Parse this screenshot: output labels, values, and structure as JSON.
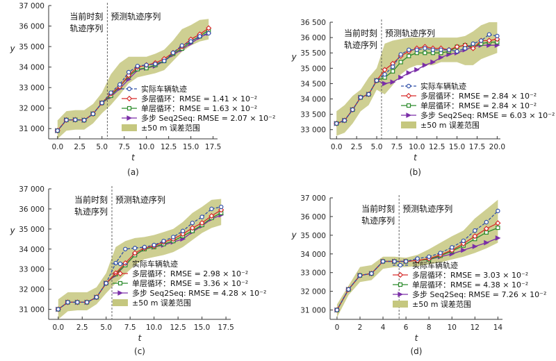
{
  "chart_data": [
    {
      "type": "line",
      "subplot_label": "(a)",
      "xlabel": "t",
      "ylabel": "y",
      "xlim": [
        -1,
        18
      ],
      "ylim": [
        30500,
        37000
      ],
      "xticks": [
        0,
        2.5,
        5,
        7.5,
        10,
        12.5,
        15,
        17.5
      ],
      "xtick_labels": [
        "0.0",
        "2.5",
        "5.0",
        "7.5",
        "10.0",
        "12.5",
        "15.0",
        "17.5"
      ],
      "yticks": [
        31000,
        32000,
        33000,
        34000,
        35000,
        36000,
        37000
      ],
      "ytick_labels": [
        "31 000",
        "32 000",
        "33 000",
        "34 000",
        "35 000",
        "36 000",
        "37 000"
      ],
      "divider_x": 5.6,
      "annotation_left": [
        "当前时刻",
        "轨迹序列"
      ],
      "annotation_right": "预测轨迹序列",
      "legend_position": "lower-right",
      "x": [
        0,
        1,
        2,
        3,
        4,
        5,
        6,
        7,
        8,
        9,
        10,
        11,
        12,
        13,
        14,
        15,
        16,
        17
      ],
      "band": {
        "name": "±50 m  误差范围",
        "lower": [
          30500,
          30900,
          30950,
          30950,
          31250,
          31750,
          32150,
          32650,
          33200,
          33500,
          33600,
          33700,
          33850,
          34300,
          34750,
          35050,
          35250,
          35350
        ],
        "upper": [
          31400,
          31850,
          31900,
          31900,
          32200,
          32750,
          33650,
          34200,
          34500,
          34500,
          34500,
          34650,
          34850,
          35300,
          35850,
          36050,
          36300,
          36350
        ]
      },
      "series": [
        {
          "name": "实际车辆轨迹",
          "values": [
            30900,
            31420,
            31430,
            31410,
            31720,
            32250,
            32750,
            33150,
            33750,
            34050,
            34100,
            34150,
            34300,
            34700,
            35050,
            35250,
            35500,
            35650
          ]
        },
        {
          "name": "多层循环：RMSE = 1.41 × 10⁻²",
          "values": [
            30900,
            31420,
            31430,
            31410,
            31720,
            32250,
            32700,
            33050,
            33600,
            34000,
            34100,
            34200,
            34400,
            34700,
            35000,
            35350,
            35600,
            35900
          ]
        },
        {
          "name": "单层循环：RMSE = 1.63 × 10⁻²",
          "values": [
            30900,
            31420,
            31430,
            31410,
            31720,
            32250,
            32600,
            33050,
            33550,
            33900,
            33950,
            34100,
            34300,
            34650,
            34900,
            35250,
            35500,
            35800
          ]
        },
        {
          "name": "多步 Seq2Seq: RMSE = 2.07 × 10⁻²",
          "values": [
            30900,
            31420,
            31430,
            31410,
            31720,
            32250,
            32550,
            32950,
            33400,
            33850,
            33950,
            34050,
            34300,
            34600,
            34850,
            35150,
            35450,
            35650
          ]
        }
      ]
    },
    {
      "type": "line",
      "subplot_label": "(b)",
      "xlabel": "t",
      "ylabel": "y",
      "xlim": [
        -0.8,
        20.4
      ],
      "ylim": [
        32700,
        36500
      ],
      "xticks": [
        0,
        2.5,
        5,
        7.5,
        10,
        12.5,
        15,
        17.5,
        20
      ],
      "xtick_labels": [
        "0.0",
        "2.5",
        "5.0",
        "7.5",
        "10.0",
        "12.5",
        "15.0",
        "17.5",
        "20.0"
      ],
      "yticks": [
        33000,
        33500,
        34000,
        34500,
        35000,
        35500,
        36000,
        36500
      ],
      "ytick_labels": [
        "33 000",
        "33 500",
        "34 000",
        "34 500",
        "35 000",
        "35 500",
        "36 000",
        "36 500"
      ],
      "divider_x": 5.6,
      "annotation_left": [
        "当前时刻",
        "轨迹序列"
      ],
      "annotation_right": "预测轨迹序列",
      "legend_position": "lower-right",
      "x": [
        0,
        1,
        2,
        3,
        4,
        5,
        6,
        7,
        8,
        9,
        10,
        11,
        12,
        13,
        14,
        15,
        16,
        17,
        18,
        19,
        20
      ],
      "band": {
        "name": "±50 m  误差范围",
        "lower": [
          32800,
          32900,
          33200,
          33600,
          33800,
          34300,
          34150,
          34450,
          34800,
          35000,
          35100,
          35100,
          35100,
          35200,
          35200,
          35200,
          35100,
          35100,
          35300,
          35400,
          35500
        ],
        "upper": [
          33600,
          33800,
          34100,
          34300,
          34700,
          35000,
          35800,
          35900,
          35950,
          36000,
          36000,
          36000,
          36000,
          36000,
          36000,
          36000,
          36050,
          36200,
          36400,
          36500,
          36500
        ]
      },
      "series": [
        {
          "name": "实际车辆轨迹",
          "values": [
            33200,
            33300,
            33650,
            34050,
            34150,
            34600,
            34800,
            35050,
            35450,
            35600,
            35600,
            35650,
            35600,
            35600,
            35600,
            35550,
            35650,
            35800,
            35900,
            36100,
            36050
          ]
        },
        {
          "name": "多层循环：RMSE = 2.84 × 10⁻²",
          "values": [
            33200,
            33300,
            33650,
            34050,
            34150,
            34600,
            34950,
            35150,
            35400,
            35550,
            35650,
            35700,
            35650,
            35650,
            35600,
            35700,
            35750,
            35650,
            35900,
            35900,
            35950
          ]
        },
        {
          "name": "单层循环：RMSE = 2.84 × 10⁻²",
          "values": [
            33200,
            33300,
            33650,
            34050,
            34150,
            34600,
            34700,
            34900,
            35200,
            35400,
            35500,
            35500,
            35500,
            35500,
            35550,
            35700,
            35750,
            35700,
            35800,
            35850,
            35850
          ]
        },
        {
          "name": "多步 Seq2Seq: RMSE = 6.03 × 10⁻²",
          "values": [
            33200,
            33300,
            33650,
            34050,
            34150,
            34600,
            34500,
            34550,
            34700,
            34850,
            34950,
            35100,
            35200,
            35350,
            35450,
            35500,
            35600,
            35700,
            35750,
            35750,
            35750
          ]
        }
      ]
    },
    {
      "type": "line",
      "subplot_label": "(c)",
      "xlabel": "t",
      "ylabel": "y",
      "xlim": [
        -1,
        18
      ],
      "ylim": [
        30500,
        37000
      ],
      "xticks": [
        0,
        2.5,
        5,
        7.5,
        10,
        12.5,
        15,
        17.5
      ],
      "xtick_labels": [
        "0.0",
        "2.5",
        "5.0",
        "7.5",
        "10.0",
        "12.5",
        "15.0",
        "17.5"
      ],
      "yticks": [
        31000,
        32000,
        33000,
        34000,
        35000,
        36000,
        37000
      ],
      "ytick_labels": [
        "31 000",
        "32 000",
        "33 000",
        "34 000",
        "35 000",
        "36 000",
        "37 000"
      ],
      "divider_x": 5.6,
      "annotation_left": [
        "当前时刻",
        "轨迹序列"
      ],
      "annotation_right": "预测轨迹序列",
      "legend_position": "lower-right",
      "x": [
        0,
        1,
        2,
        3,
        4,
        5,
        6,
        7,
        8,
        9,
        10,
        11,
        12,
        13,
        14,
        15,
        16,
        17
      ],
      "band": {
        "name": "±50 m  误差范围",
        "lower": [
          30500,
          30900,
          30950,
          30950,
          31250,
          31800,
          32300,
          32750,
          33200,
          33500,
          33600,
          33700,
          33850,
          34100,
          34450,
          34800,
          35050,
          35200
        ],
        "upper": [
          31500,
          31850,
          31850,
          31850,
          32100,
          32800,
          34100,
          34400,
          34550,
          34600,
          34700,
          34850,
          35000,
          35350,
          35800,
          36100,
          36450,
          36500
        ]
      },
      "series": [
        {
          "name": "实际车辆轨迹",
          "values": [
            31000,
            31350,
            31350,
            31350,
            31600,
            32300,
            33300,
            34000,
            34050,
            34100,
            34200,
            34400,
            34600,
            34900,
            35300,
            35600,
            36000,
            36100
          ]
        },
        {
          "name": "多层循环：RMSE = 2.98 × 10⁻²",
          "values": [
            31000,
            31350,
            31350,
            31350,
            31600,
            32300,
            32800,
            33300,
            33800,
            34050,
            34150,
            34350,
            34500,
            34750,
            35050,
            35300,
            35650,
            35950
          ]
        },
        {
          "name": "单层循环：RMSE = 3.36 × 10⁻²",
          "values": [
            31000,
            31350,
            31350,
            31350,
            31600,
            32300,
            32750,
            33200,
            33700,
            34000,
            34100,
            34250,
            34400,
            34650,
            34900,
            35200,
            35550,
            35800
          ]
        },
        {
          "name": "多步 Seq2Seq: RMSE = 4.28 × 10⁻²",
          "values": [
            31000,
            31350,
            31350,
            31350,
            31600,
            32300,
            32700,
            33200,
            33700,
            34000,
            34100,
            34200,
            34350,
            34500,
            34850,
            35150,
            35500,
            35700
          ]
        }
      ]
    },
    {
      "type": "line",
      "subplot_label": "(d)",
      "xlabel": "t",
      "ylabel": "y",
      "xlim": [
        -0.6,
        14.4
      ],
      "ylim": [
        30500,
        37000
      ],
      "xticks": [
        0,
        2,
        4,
        6,
        8,
        10,
        12,
        14
      ],
      "xtick_labels": [
        "0",
        "2",
        "4",
        "6",
        "8",
        "10",
        "12",
        "14"
      ],
      "yticks": [
        31000,
        32000,
        33000,
        34000,
        35000,
        36000,
        37000
      ],
      "ytick_labels": [
        "31 000",
        "32 000",
        "33 000",
        "34 000",
        "35 000",
        "36 000",
        "37 000"
      ],
      "divider_x": 5.4,
      "annotation_left": [
        "当前时刻",
        "轨迹序列"
      ],
      "annotation_right": "预测轨迹序列",
      "legend_position": "lower-right",
      "x": [
        0,
        1,
        2,
        3,
        4,
        5,
        6,
        7,
        8,
        9,
        10,
        11,
        12,
        13,
        14
      ],
      "band": {
        "name": "±50 m  误差范围",
        "lower": [
          30600,
          31800,
          32500,
          32600,
          33200,
          33300,
          33300,
          33350,
          33450,
          33550,
          33700,
          33850,
          34050,
          34300,
          34600
        ],
        "upper": [
          31300,
          32300,
          33300,
          33400,
          33850,
          33850,
          33800,
          33950,
          34250,
          34600,
          34950,
          35250,
          35900,
          36400,
          36900
        ]
      },
      "series": [
        {
          "name": "实际车辆轨迹",
          "values": [
            31000,
            32100,
            32850,
            32950,
            33600,
            33600,
            33600,
            33750,
            33850,
            34050,
            34350,
            34700,
            35250,
            35700,
            36300
          ]
        },
        {
          "name": "多层循环：RMSE = 3.03 × 10⁻²",
          "values": [
            31000,
            32100,
            32850,
            32950,
            33600,
            33600,
            33600,
            33650,
            33750,
            33950,
            34200,
            34550,
            34950,
            35350,
            35650
          ]
        },
        {
          "name": "单层循环：RMSE = 4.38 × 10⁻²",
          "values": [
            31000,
            32100,
            32850,
            32950,
            33600,
            33600,
            33600,
            33650,
            33700,
            33900,
            34150,
            34450,
            34800,
            35150,
            35400
          ]
        },
        {
          "name": "多步 Seq2Seq: RMSE = 7.26 × 10⁻²",
          "values": [
            31000,
            32100,
            32850,
            32950,
            33600,
            33600,
            33600,
            33650,
            33700,
            33850,
            34000,
            34200,
            34400,
            34600,
            34850
          ]
        }
      ]
    }
  ],
  "series_colors": [
    "#2f4fa8",
    "#d62b2b",
    "#2a8a2a",
    "#7b2fa8"
  ],
  "band_color": "#c5c77f"
}
